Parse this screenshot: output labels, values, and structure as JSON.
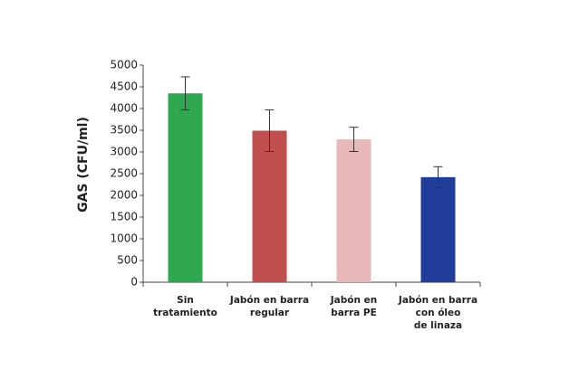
{
  "chart_data": {
    "type": "bar",
    "y_label": "GAS (CFU/ml)",
    "categories": [
      [
        "Sin",
        "tratamiento"
      ],
      [
        "Jabón en barra",
        "regular"
      ],
      [
        "Jabón en",
        "barra PE"
      ],
      [
        "Jabón en barra",
        "con óleo",
        "de linaza"
      ]
    ],
    "values": [
      4350,
      3490,
      3290,
      2420
    ],
    "errors": [
      380,
      480,
      280,
      240
    ],
    "colors": [
      "#2fa84f",
      "#c0504d",
      "#e6b8b7",
      "#1f3d99"
    ],
    "ylim": [
      0,
      5000
    ],
    "yticks": [
      0,
      500,
      1000,
      1500,
      2000,
      2500,
      3000,
      3500,
      4000,
      4500,
      5000
    ]
  }
}
